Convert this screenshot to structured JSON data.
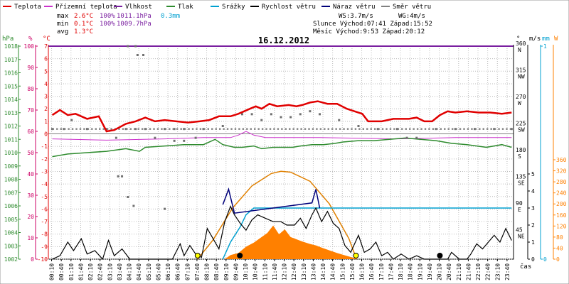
{
  "chart_data": {
    "type": "line",
    "title": "16.12.2012",
    "legend": [
      {
        "name": "Teplota",
        "color": "#e00000"
      },
      {
        "name": "Přízemní teplota",
        "color": "#cc33cc"
      },
      {
        "name": "Vlhkost",
        "color": "#7a1fa0"
      },
      {
        "name": "Tlak",
        "color": "#2e8b2e"
      },
      {
        "name": "Srážky",
        "color": "#00a0d0"
      },
      {
        "name": "Rychlost větru",
        "color": "#000000"
      },
      {
        "name": "Náraz větru",
        "color": "#00007a"
      },
      {
        "name": "Směr větru",
        "color": "#808080"
      }
    ],
    "stats": {
      "max_label": "max",
      "max_temp": "2.6°C",
      "max_hum": "100%",
      "max_press": "1011.1hPa",
      "max_rain": "0.3mm",
      "min_label": "min",
      "min_temp": "0.1°C",
      "min_hum": "100%",
      "min_press": "1009.7hPa",
      "avg_label": "avg",
      "avg_temp": "1.3°C"
    },
    "info": {
      "ws": "WS:3.7m/s",
      "wg": "WG:4m/s",
      "sun": "Slunce Východ:07:41  Západ:15:52",
      "moon": "Měsíc  Východ:9:53  Západ:20:12"
    },
    "axes": {
      "hpa_title": "hPa",
      "hum_title": "%",
      "temp_title": "°C",
      "dir_title": "°",
      "wind_title": "m/s",
      "rain_title": "mm",
      "solar_title": "W",
      "x_title": "čas",
      "hpa_ticks": [
        "1002",
        "1003",
        "1004",
        "1005",
        "1006",
        "1007",
        "1008",
        "1009",
        "1010",
        "1011",
        "1012",
        "1013",
        "1014",
        "1015",
        "1016",
        "1017",
        "1018"
      ],
      "hum_ticks": [
        "0",
        "10",
        "20",
        "30",
        "40",
        "50",
        "60",
        "70",
        "80",
        "90",
        "100"
      ],
      "temp_ticks": [
        "-10",
        "-9",
        "-8",
        "-7",
        "-6",
        "-5",
        "-4",
        "-3",
        "-2",
        "-1",
        "0",
        "1",
        "2",
        "3",
        "4",
        "5",
        "6",
        "7"
      ],
      "dir_ticks": [
        {
          "deg": "45",
          "name": "NE",
          "v": 45
        },
        {
          "deg": "90",
          "name": "E",
          "v": 90
        },
        {
          "deg": "135",
          "name": "SE",
          "v": 135
        },
        {
          "deg": "180",
          "name": "S",
          "v": 180
        },
        {
          "deg": "225",
          "name": "SW",
          "v": 225
        },
        {
          "deg": "270",
          "name": "W",
          "v": 270
        },
        {
          "deg": "315",
          "name": "NW",
          "v": 315
        },
        {
          "deg": "360",
          "name": "N",
          "v": 360
        }
      ],
      "wind_ticks": [
        "0",
        "1",
        "2",
        "3",
        "4",
        "5"
      ],
      "rain_ticks": [
        "0",
        "1"
      ],
      "solar_ticks": [
        "0",
        "40",
        "80",
        "120",
        "160",
        "200",
        "240",
        "280",
        "320",
        "360"
      ],
      "x_ticks": [
        "00:10",
        "00:40",
        "01:10",
        "01:40",
        "02:10",
        "02:40",
        "03:10",
        "03:40",
        "04:10",
        "04:40",
        "05:10",
        "05:40",
        "06:10",
        "06:40",
        "07:10",
        "07:40",
        "08:10",
        "08:40",
        "09:10",
        "09:40",
        "10:10",
        "10:40",
        "11:10",
        "11:40",
        "12:10",
        "12:40",
        "13:10",
        "13:40",
        "14:10",
        "14:40",
        "15:10",
        "15:40",
        "16:10",
        "16:40",
        "17:10",
        "17:40",
        "18:10",
        "18:40",
        "19:10",
        "19:40",
        "20:10",
        "20:40",
        "21:10",
        "21:40",
        "22:10",
        "22:40",
        "23:10",
        "23:40"
      ]
    },
    "xlim_hours": [
      0,
      24
    ],
    "temp_lim": [
      -10,
      7
    ],
    "press_lim": [
      1002,
      1018
    ],
    "wind_lim": [
      0,
      5
    ],
    "solar_lim": [
      0,
      360
    ],
    "humidity": 100,
    "temperature": [
      [
        0.2,
        1.5
      ],
      [
        0.6,
        1.9
      ],
      [
        1.0,
        1.5
      ],
      [
        1.4,
        1.6
      ],
      [
        2.0,
        1.2
      ],
      [
        2.6,
        1.4
      ],
      [
        3.0,
        0.2
      ],
      [
        3.4,
        0.3
      ],
      [
        4.0,
        0.8
      ],
      [
        4.5,
        1.0
      ],
      [
        5.0,
        1.3
      ],
      [
        5.5,
        1.0
      ],
      [
        6.0,
        1.1
      ],
      [
        6.6,
        1.0
      ],
      [
        7.2,
        0.9
      ],
      [
        7.8,
        1.0
      ],
      [
        8.3,
        1.1
      ],
      [
        8.8,
        1.4
      ],
      [
        9.4,
        1.4
      ],
      [
        9.8,
        1.6
      ],
      [
        10.4,
        2.0
      ],
      [
        10.7,
        2.2
      ],
      [
        11.0,
        2.0
      ],
      [
        11.4,
        2.4
      ],
      [
        11.8,
        2.2
      ],
      [
        12.4,
        2.3
      ],
      [
        12.8,
        2.2
      ],
      [
        13.1,
        2.3
      ],
      [
        13.5,
        2.5
      ],
      [
        13.9,
        2.6
      ],
      [
        14.4,
        2.4
      ],
      [
        14.9,
        2.4
      ],
      [
        15.4,
        2.0
      ],
      [
        15.8,
        1.8
      ],
      [
        16.2,
        1.6
      ],
      [
        16.5,
        1.0
      ],
      [
        16.8,
        1.0
      ],
      [
        17.2,
        1.0
      ],
      [
        17.8,
        1.2
      ],
      [
        18.6,
        1.2
      ],
      [
        19.0,
        1.3
      ],
      [
        19.4,
        1.0
      ],
      [
        19.8,
        1.0
      ],
      [
        20.2,
        1.5
      ],
      [
        20.6,
        1.8
      ],
      [
        21.0,
        1.7
      ],
      [
        21.6,
        1.8
      ],
      [
        22.2,
        1.7
      ],
      [
        22.8,
        1.7
      ],
      [
        23.4,
        1.6
      ],
      [
        23.9,
        1.7
      ]
    ],
    "ground_temperature": [
      [
        0.2,
        -0.4
      ],
      [
        3.0,
        -0.5
      ],
      [
        6.0,
        -0.4
      ],
      [
        8.0,
        -0.3
      ],
      [
        9.4,
        -0.3
      ],
      [
        9.8,
        -0.1
      ],
      [
        10.2,
        0.2
      ],
      [
        10.6,
        -0.1
      ],
      [
        11.2,
        -0.3
      ],
      [
        14.0,
        -0.3
      ],
      [
        18.0,
        -0.4
      ],
      [
        21.0,
        -0.3
      ],
      [
        23.9,
        -0.3
      ]
    ],
    "pressure": [
      [
        0.2,
        1009.7
      ],
      [
        1.0,
        1009.9
      ],
      [
        2.0,
        1010.0
      ],
      [
        3.0,
        1010.1
      ],
      [
        4.0,
        1010.3
      ],
      [
        4.7,
        1010.1
      ],
      [
        5.0,
        1010.4
      ],
      [
        6.0,
        1010.5
      ],
      [
        7.0,
        1010.6
      ],
      [
        8.0,
        1010.6
      ],
      [
        8.6,
        1011.0
      ],
      [
        9.0,
        1010.6
      ],
      [
        9.6,
        1010.4
      ],
      [
        10.0,
        1010.4
      ],
      [
        10.6,
        1010.5
      ],
      [
        11.0,
        1010.3
      ],
      [
        11.6,
        1010.4
      ],
      [
        12.0,
        1010.4
      ],
      [
        12.6,
        1010.4
      ],
      [
        13.0,
        1010.5
      ],
      [
        13.6,
        1010.6
      ],
      [
        14.2,
        1010.6
      ],
      [
        14.8,
        1010.7
      ],
      [
        15.2,
        1010.8
      ],
      [
        16.0,
        1010.9
      ],
      [
        16.8,
        1010.9
      ],
      [
        17.6,
        1011.0
      ],
      [
        18.4,
        1011.1
      ],
      [
        19.2,
        1011.0
      ],
      [
        20.0,
        1010.9
      ],
      [
        20.8,
        1010.7
      ],
      [
        21.6,
        1010.6
      ],
      [
        22.6,
        1010.4
      ],
      [
        23.4,
        1010.6
      ],
      [
        23.9,
        1010.4
      ]
    ],
    "wind_speed": [
      [
        0.2,
        0
      ],
      [
        0.6,
        0.2
      ],
      [
        1.0,
        1.0
      ],
      [
        1.3,
        0.5
      ],
      [
        1.7,
        1.2
      ],
      [
        2.0,
        0.3
      ],
      [
        2.4,
        0.5
      ],
      [
        2.8,
        0
      ],
      [
        3.1,
        1.1
      ],
      [
        3.4,
        0.2
      ],
      [
        3.8,
        0.6
      ],
      [
        4.2,
        0
      ],
      [
        6.4,
        0
      ],
      [
        6.8,
        0.9
      ],
      [
        7.0,
        0.2
      ],
      [
        7.3,
        0.8
      ],
      [
        7.6,
        0.3
      ],
      [
        7.9,
        0.1
      ],
      [
        8.2,
        1.8
      ],
      [
        8.5,
        1.2
      ],
      [
        8.8,
        0.6
      ],
      [
        9.1,
        2.2
      ],
      [
        9.4,
        3.1
      ],
      [
        9.6,
        2.6
      ],
      [
        9.9,
        2.1
      ],
      [
        10.2,
        1.7
      ],
      [
        10.5,
        2.3
      ],
      [
        10.8,
        2.6
      ],
      [
        11.2,
        2.4
      ],
      [
        11.6,
        2.2
      ],
      [
        12.0,
        2.2
      ],
      [
        12.3,
        2.0
      ],
      [
        12.7,
        2.0
      ],
      [
        13.0,
        2.4
      ],
      [
        13.3,
        1.8
      ],
      [
        13.6,
        2.6
      ],
      [
        13.8,
        3.0
      ],
      [
        14.1,
        2.2
      ],
      [
        14.4,
        2.8
      ],
      [
        14.7,
        2.1
      ],
      [
        15.0,
        1.8
      ],
      [
        15.3,
        0.8
      ],
      [
        15.6,
        0.4
      ],
      [
        16.0,
        1.4
      ],
      [
        16.3,
        0.4
      ],
      [
        16.6,
        0.6
      ],
      [
        16.9,
        1.0
      ],
      [
        17.2,
        0.2
      ],
      [
        17.5,
        0.4
      ],
      [
        17.8,
        0
      ],
      [
        18.2,
        0.3
      ],
      [
        18.6,
        0
      ],
      [
        19.0,
        0.2
      ],
      [
        19.4,
        0
      ],
      [
        20.6,
        0
      ],
      [
        20.8,
        0.4
      ],
      [
        21.2,
        0
      ],
      [
        21.6,
        0
      ],
      [
        21.8,
        0.3
      ],
      [
        22.1,
        0.9
      ],
      [
        22.4,
        0.6
      ],
      [
        22.7,
        1.0
      ],
      [
        23.0,
        1.4
      ],
      [
        23.3,
        1.0
      ],
      [
        23.6,
        1.8
      ],
      [
        23.9,
        1.1
      ]
    ],
    "wind_gust": [
      [
        9.0,
        3.2
      ],
      [
        9.3,
        4.1
      ],
      [
        9.6,
        2.7
      ],
      [
        13.6,
        3.3
      ],
      [
        13.8,
        4.1
      ],
      [
        14.0,
        3.0
      ]
    ],
    "rain": [
      [
        9.0,
        0
      ],
      [
        9.4,
        1.0
      ],
      [
        9.9,
        1.9
      ],
      [
        10.2,
        2.6
      ],
      [
        10.6,
        3.0
      ],
      [
        23.9,
        3.0
      ]
    ],
    "solar_theoretical": [
      [
        7.7,
        0
      ],
      [
        8.5,
        70
      ],
      [
        9.5,
        185
      ],
      [
        10.5,
        265
      ],
      [
        11.5,
        310
      ],
      [
        12.0,
        318
      ],
      [
        12.5,
        315
      ],
      [
        13.5,
        282
      ],
      [
        14.5,
        200
      ],
      [
        15.5,
        75
      ],
      [
        15.9,
        0
      ]
    ],
    "solar_measured": [
      [
        9.1,
        0
      ],
      [
        9.4,
        15
      ],
      [
        9.8,
        22
      ],
      [
        10.2,
        45
      ],
      [
        10.6,
        60
      ],
      [
        11.0,
        80
      ],
      [
        11.3,
        95
      ],
      [
        11.6,
        122
      ],
      [
        11.9,
        90
      ],
      [
        12.2,
        108
      ],
      [
        12.5,
        80
      ],
      [
        12.8,
        72
      ],
      [
        13.1,
        64
      ],
      [
        13.5,
        55
      ],
      [
        13.8,
        50
      ],
      [
        14.1,
        42
      ],
      [
        14.5,
        32
      ],
      [
        14.9,
        22
      ],
      [
        15.3,
        14
      ],
      [
        15.7,
        6
      ],
      [
        16.0,
        0
      ]
    ],
    "wind_direction": [
      [
        0.2,
        220
      ],
      [
        0.8,
        220
      ],
      [
        1.2,
        235
      ],
      [
        2.0,
        220
      ],
      [
        3.0,
        220
      ],
      [
        3.5,
        205
      ],
      [
        4.0,
        220
      ],
      [
        4.5,
        220
      ],
      [
        5.0,
        220
      ],
      [
        5.5,
        205
      ],
      [
        6.0,
        220
      ],
      [
        6.5,
        220
      ],
      [
        7.0,
        220
      ],
      [
        8.0,
        220
      ],
      [
        9.0,
        225
      ],
      [
        10.0,
        245
      ],
      [
        10.5,
        245
      ],
      [
        11.0,
        235
      ],
      [
        11.5,
        245
      ],
      [
        12.0,
        240
      ],
      [
        12.5,
        240
      ],
      [
        13.0,
        245
      ],
      [
        13.5,
        250
      ],
      [
        14.0,
        245
      ],
      [
        15.0,
        235
      ],
      [
        16.0,
        225
      ],
      [
        17.0,
        220
      ],
      [
        18.0,
        220
      ],
      [
        18.5,
        205
      ],
      [
        19.0,
        205
      ],
      [
        20.0,
        220
      ],
      [
        21.0,
        220
      ],
      [
        22.0,
        220
      ],
      [
        23.0,
        220
      ],
      [
        23.9,
        220
      ]
    ],
    "wind_direction_outliers": [
      [
        4.1,
        360
      ],
      [
        4.5,
        360
      ],
      [
        4.6,
        345
      ],
      [
        4.9,
        345
      ],
      [
        3.6,
        140
      ],
      [
        3.8,
        140
      ],
      [
        4.1,
        105
      ],
      [
        4.4,
        90
      ],
      [
        6.0,
        85
      ],
      [
        6.5,
        200
      ],
      [
        7.0,
        200
      ],
      [
        7.6,
        205
      ]
    ],
    "sunrise_hours": 7.7,
    "sunset_hours": 15.87,
    "moonrise_hours": 9.88,
    "moonset_hours": 20.2
  }
}
